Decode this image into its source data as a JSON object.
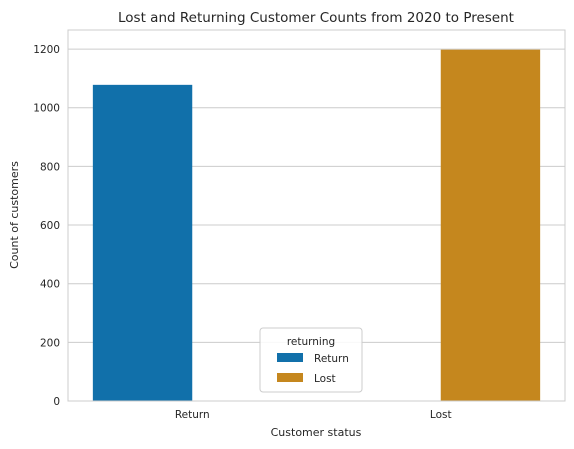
{
  "chart_data": {
    "type": "bar",
    "title": "Lost and Returning Customer Counts from 2020 to Present",
    "xlabel": "Customer status",
    "ylabel": "Count of customers",
    "categories": [
      "Return",
      "Lost"
    ],
    "ylim": [
      0,
      1265
    ],
    "yticks": [
      0,
      200,
      400,
      600,
      800,
      1000,
      1200
    ],
    "grid": "y",
    "legend": {
      "title": "returning",
      "placement": "bottom-center",
      "entries": [
        "Return",
        "Lost"
      ]
    },
    "series": [
      {
        "name": "Return",
        "color": "#1170aa",
        "values": [
          1078,
          0
        ]
      },
      {
        "name": "Lost",
        "color": "#c5871e",
        "values": [
          0,
          1198
        ]
      }
    ]
  }
}
